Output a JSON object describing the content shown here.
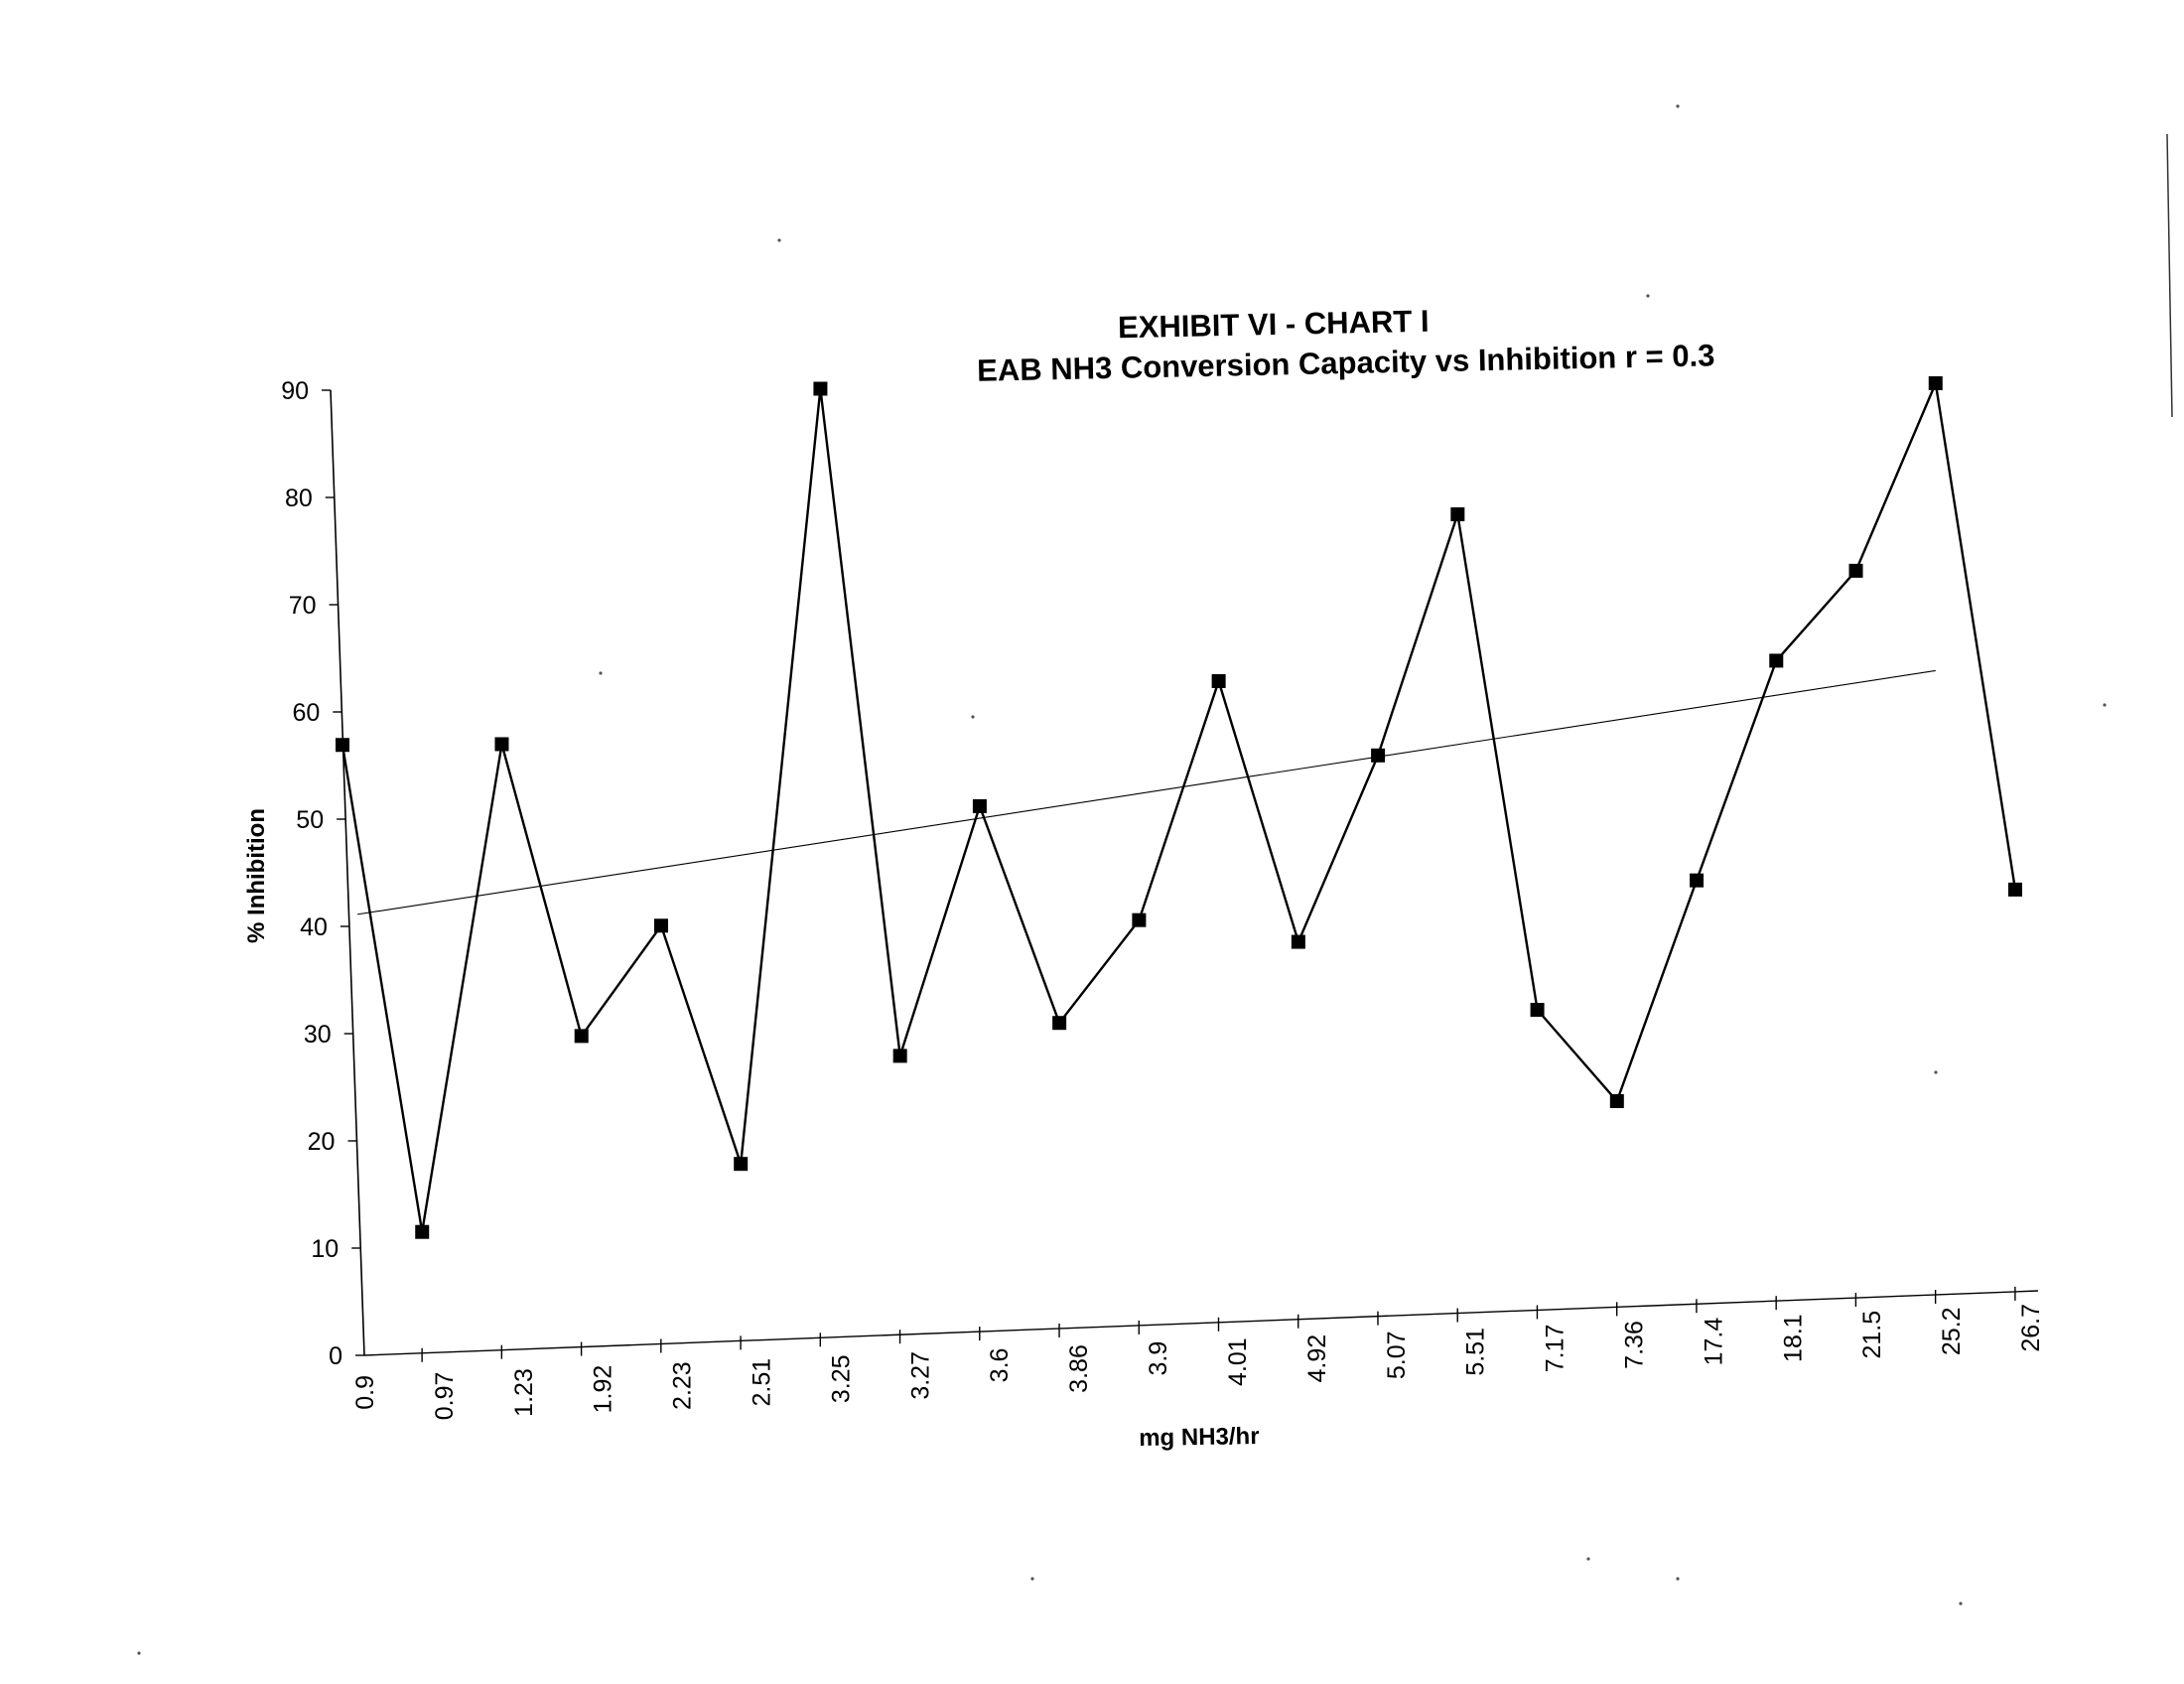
{
  "chart_data": {
    "type": "line",
    "title": "EXHIBIT VI - CHART I",
    "subtitle": "EAB NH3 Conversion Capacity vs Inhibition r  =  0.3",
    "xlabel": "mg NH3/hr",
    "ylabel": "% Inhibition",
    "categories": [
      "0.9",
      "0.97",
      "1.23",
      "1.92",
      "2.23",
      "2.51",
      "3.25",
      "3.27",
      "3.6",
      "3.86",
      "3.9",
      "4.01",
      "4.92",
      "5.07",
      "5.51",
      "7.17",
      "7.36",
      "17.4",
      "18.1",
      "21.5",
      "25.2",
      "26.7"
    ],
    "series": [
      {
        "values": [
          57,
          11.3,
          56.5,
          29,
          39,
          16.5,
          88.5,
          26,
          49,
          28.5,
          37.8,
          59.8,
          35.2,
          52.3,
          74.5,
          28,
          19.2,
          39.5,
          59.7,
          67.8,
          85,
          37.5
        ]
      }
    ],
    "trendline": {
      "start": 41.2,
      "end": 58.2
    },
    "ylim": [
      0,
      90
    ],
    "yticks": [
      "0",
      "10",
      "20",
      "30",
      "40",
      "50",
      "60",
      "70",
      "80",
      "90"
    ],
    "grid": false,
    "legend": "none",
    "colors": {
      "line": "#000000",
      "marker": "#000000",
      "trendline": "#000000"
    }
  }
}
